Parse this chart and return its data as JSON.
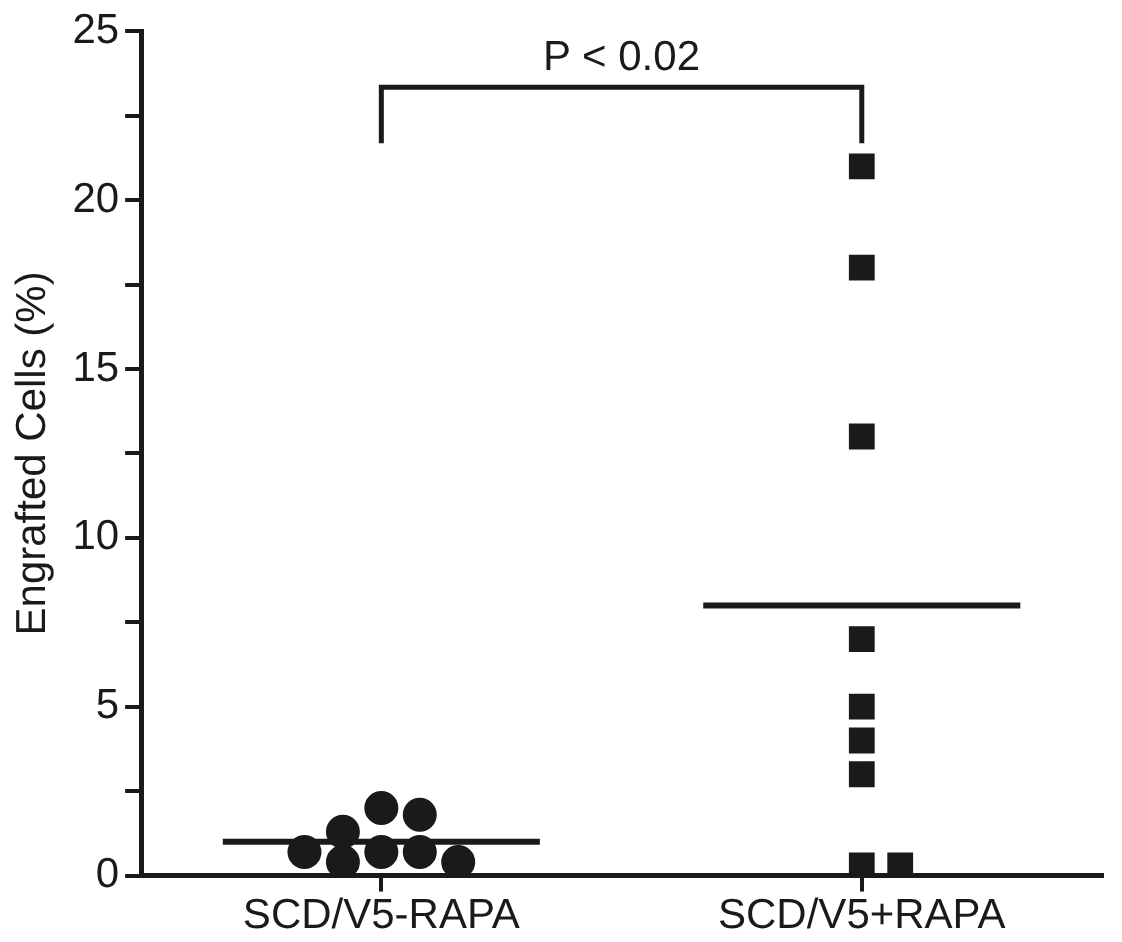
{
  "chart_data": {
    "type": "scatter",
    "ylabel": "Engrafted Cells (%)",
    "categories": [
      "SCD/V5-RAPA",
      "SCD/V5+RAPA"
    ],
    "series": [
      {
        "marker": "circle",
        "color": "#1a1a1a",
        "x": [
          "SCD/V5-RAPA",
          "SCD/V5-RAPA",
          "SCD/V5-RAPA",
          "SCD/V5-RAPA",
          "SCD/V5-RAPA",
          "SCD/V5-RAPA",
          "SCD/V5-RAPA",
          "SCD/V5-RAPA"
        ],
        "values": [
          0.7,
          0.7,
          0.4,
          2.0,
          0.4,
          1.8,
          0.7,
          1.3
        ]
      },
      {
        "marker": "square",
        "color": "#1a1a1a",
        "x": [
          "SCD/V5+RAPA",
          "SCD/V5+RAPA",
          "SCD/V5+RAPA",
          "SCD/V5+RAPA",
          "SCD/V5+RAPA",
          "SCD/V5+RAPA",
          "SCD/V5+RAPA",
          "SCD/V5+RAPA",
          "SCD/V5+RAPA"
        ],
        "values": [
          21,
          18,
          13,
          7,
          5,
          4,
          3,
          0.3,
          0.3
        ]
      }
    ],
    "ref_lines": [
      {
        "axis": "y",
        "value": 1.0,
        "color": "#1a1a1a"
      },
      {
        "axis": "y",
        "value": 8.0,
        "color": "#1a1a1a"
      }
    ],
    "ylim": [
      0,
      25
    ],
    "yticks": [
      0,
      {
        "value": 2.5,
        "label": null
      },
      5,
      {
        "value": 7.5,
        "label": null
      },
      10,
      {
        "value": 12.5,
        "label": null
      },
      15,
      {
        "value": 17.5,
        "label": null
      },
      20,
      {
        "value": 22.5,
        "label": null
      },
      25
    ],
    "grid": false,
    "legend": false,
    "annotations": [
      "P < 0.02"
    ]
  }
}
